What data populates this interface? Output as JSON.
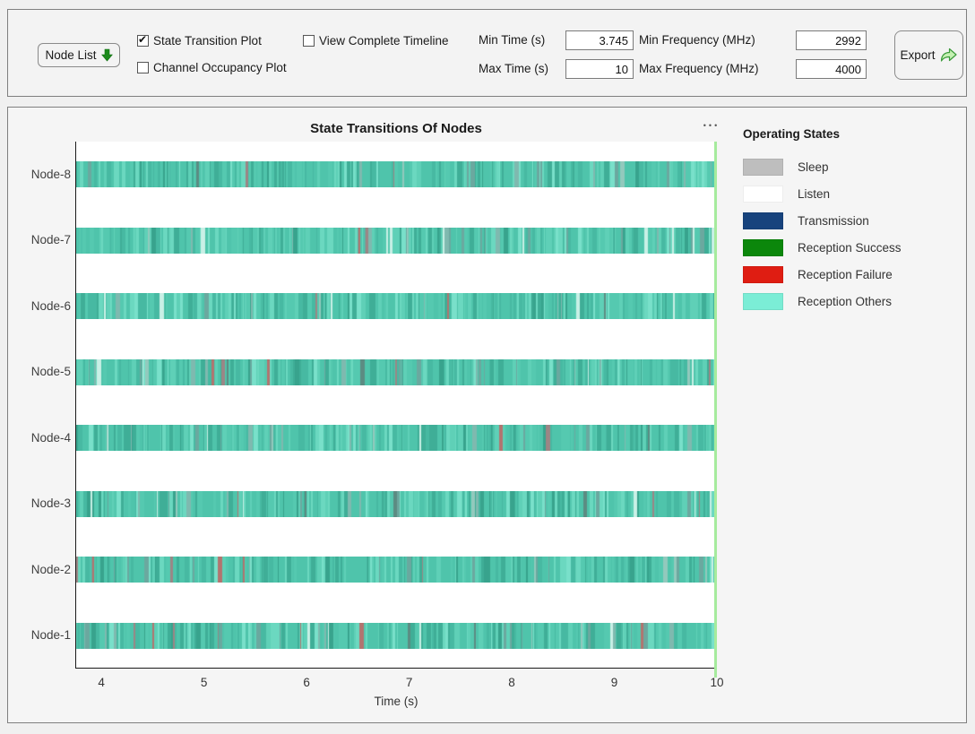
{
  "toolbar": {
    "node_list_button": "Node List",
    "checkboxes": [
      {
        "label": "State Transition Plot",
        "checked": true
      },
      {
        "label": "Channel Occupancy Plot",
        "checked": false
      },
      {
        "label": "View Complete Timeline",
        "checked": false
      }
    ],
    "fields": [
      {
        "label": "Min Time (s)",
        "value": "3.745"
      },
      {
        "label": "Max Time (s)",
        "value": "10"
      },
      {
        "label": "Min Frequency (MHz)",
        "value": "2992"
      },
      {
        "label": "Max Frequency (MHz)",
        "value": "4000"
      }
    ],
    "export_button": "Export"
  },
  "icons": {
    "node_list_arrow": "green-down-arrow",
    "export_arrow": "green-share-arrow",
    "axes_menu_glyph": "•••"
  },
  "chart_data": {
    "type": "timeline",
    "title": "State Transitions Of Nodes",
    "xlabel": "Time (s)",
    "xlim": [
      3.745,
      10
    ],
    "x_ticks": [
      4,
      5,
      6,
      7,
      8,
      9,
      10
    ],
    "nodes": [
      "Node-8",
      "Node-7",
      "Node-6",
      "Node-5",
      "Node-4",
      "Node-3",
      "Node-2",
      "Node-1"
    ],
    "description": "Each node shows one horizontal bar spanning the full 3.745-10 s window, densely striped with rapid state transitions dominated by teal Reception-Others / Listen activity; a pale green cursor line marks t = 10 s at the right edge.",
    "cursor_time": 10,
    "cursor_color": "#a6eb9d",
    "bar_texture": {
      "seed_base": 1337,
      "palette": [
        "#4fc4ab",
        "#55c9b0",
        "#5fd0b7",
        "#6bd8c0",
        "#79e0ca",
        "#47b9a2",
        "#3fae97",
        "#38a38d",
        "#6ba89f",
        "#7fb9af",
        "#93c9bd",
        "#9c8585",
        "#b2746f",
        "#5c8b82",
        "#c9f0e6"
      ],
      "weights": [
        0.3,
        0.14,
        0.1,
        0.08,
        0.05,
        0.12,
        0.09,
        0.04,
        0.03,
        0.02,
        0.01,
        0.008,
        0.006,
        0.006,
        0.01
      ]
    }
  },
  "legend": {
    "title": "Operating States",
    "items": [
      {
        "label": "Sleep",
        "color": "#bebebe"
      },
      {
        "label": "Listen",
        "color": "#ffffff"
      },
      {
        "label": "Transmission",
        "color": "#17437d"
      },
      {
        "label": "Reception Success",
        "color": "#0b870b"
      },
      {
        "label": "Reception Failure",
        "color": "#df1d12"
      },
      {
        "label": "Reception Others",
        "color": "#7bedd6"
      }
    ]
  }
}
